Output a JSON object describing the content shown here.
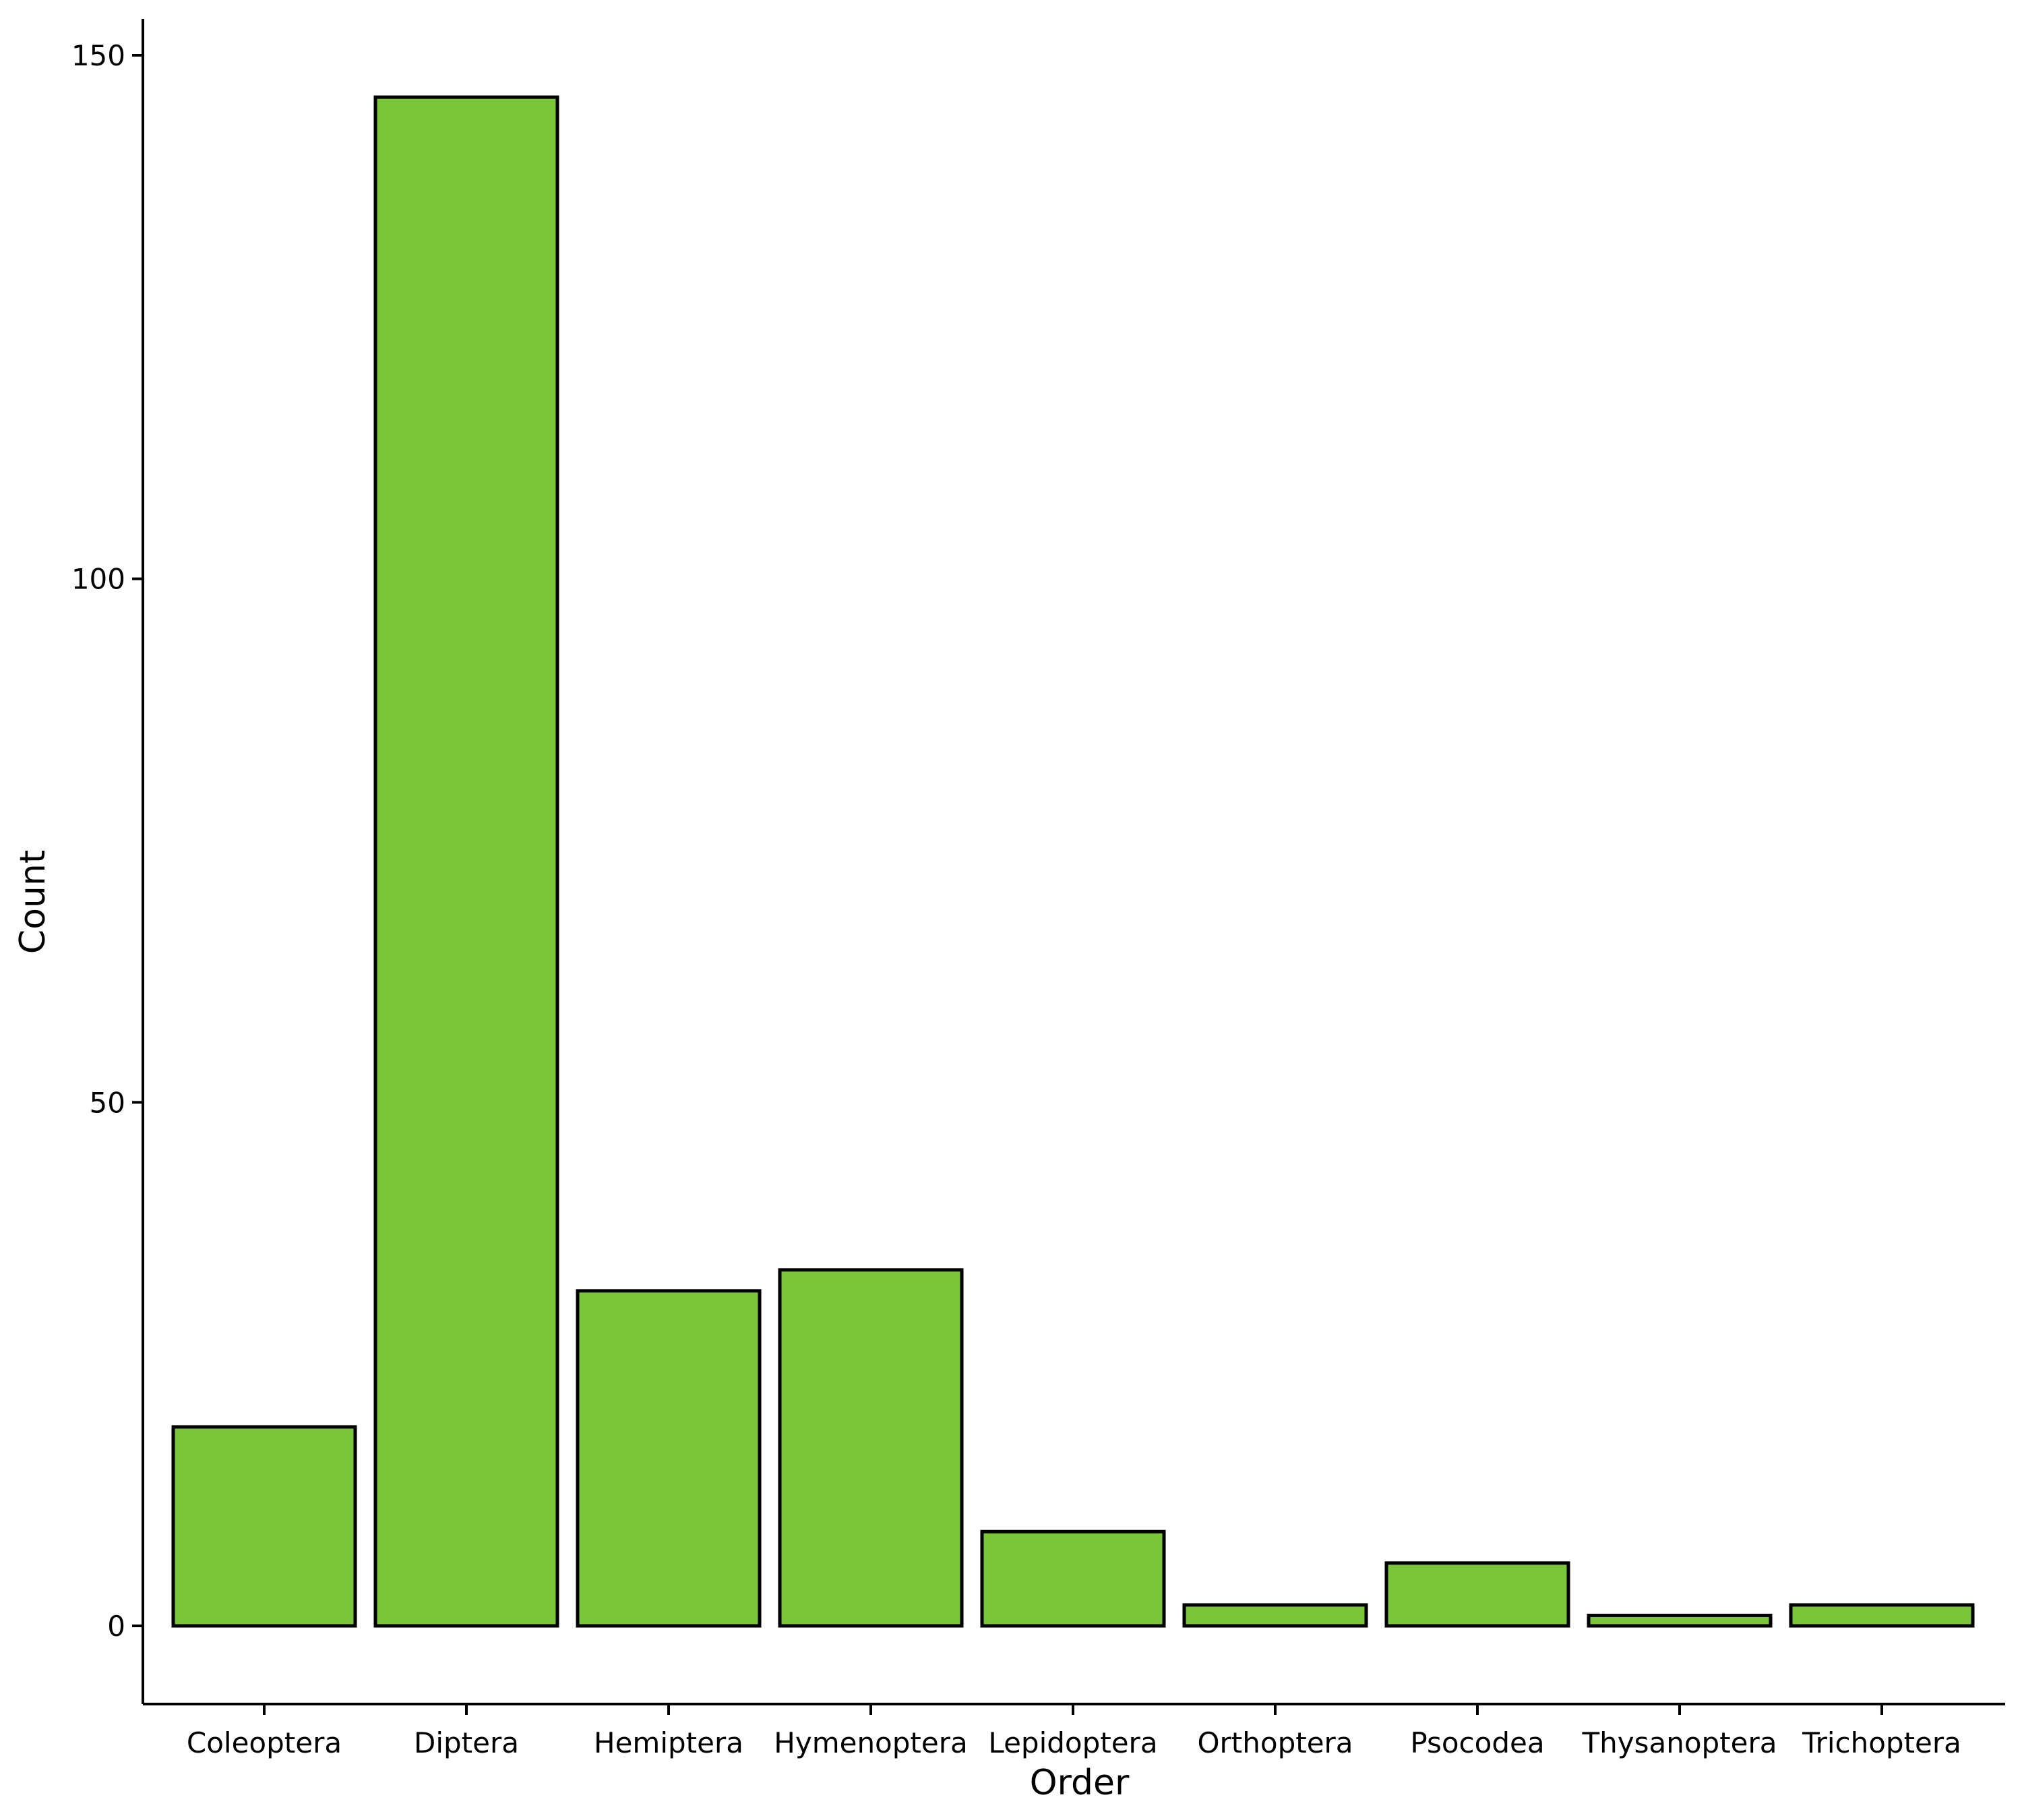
{
  "chart_data": {
    "type": "bar",
    "categories": [
      "Coleoptera",
      "Diptera",
      "Hemiptera",
      "Hymenoptera",
      "Lepidoptera",
      "Orthoptera",
      "Psocodea",
      "Thysanoptera",
      "Trichoptera"
    ],
    "values": [
      19,
      146,
      32,
      34,
      9,
      2,
      6,
      1,
      2
    ],
    "title": "",
    "xlabel": "Order",
    "ylabel": "Count",
    "ylim": [
      0,
      150
    ],
    "yticks": [
      "0",
      "50",
      "100",
      "150"
    ],
    "grid": false,
    "legend": "none",
    "bar_color": "#7AC63A",
    "bar_edge_color": "#000000"
  }
}
